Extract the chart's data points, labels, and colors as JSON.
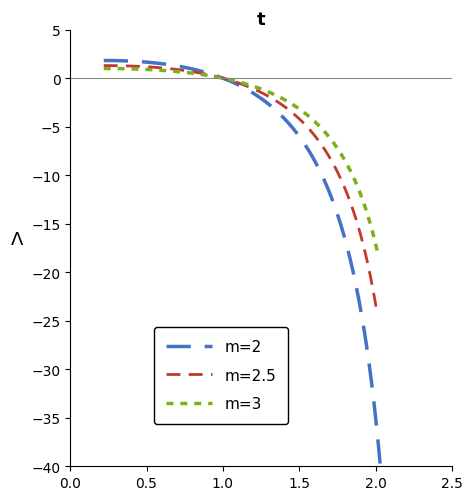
{
  "title": "t",
  "ylabel": "Λ",
  "xlim": [
    0,
    2.5
  ],
  "ylim": [
    -40,
    5
  ],
  "xticks": [
    0,
    0.5,
    1.0,
    1.5,
    2.0,
    2.5
  ],
  "yticks": [
    5,
    0,
    -5,
    -10,
    -15,
    -20,
    -25,
    -30,
    -35,
    -40
  ],
  "curves": [
    {
      "label": "m=2",
      "color": "#4472c4",
      "linestyle": "dashed",
      "linewidth": 2.5,
      "A": -4.08,
      "tc": 2.35,
      "t_start": 0.22,
      "t_end": 2.07
    },
    {
      "label": "m=2.5",
      "color": "#c0392b",
      "linestyle": "dashed",
      "linewidth": 2.0,
      "A": -2.95,
      "tc": 2.38,
      "t_start": 0.22,
      "t_end": 2.01
    },
    {
      "label": "m=3",
      "color": "#7daf1c",
      "linestyle": "dotted",
      "linewidth": 2.5,
      "A": -2.28,
      "tc": 2.4,
      "t_start": 0.22,
      "t_end": 2.01
    }
  ],
  "background_color": "#ffffff",
  "legend_fontsize": 11,
  "axis_label_fontsize": 13,
  "tick_fontsize": 10,
  "title_fontsize": 13,
  "figsize": [
    4.74,
    5.02
  ],
  "dpi": 100
}
